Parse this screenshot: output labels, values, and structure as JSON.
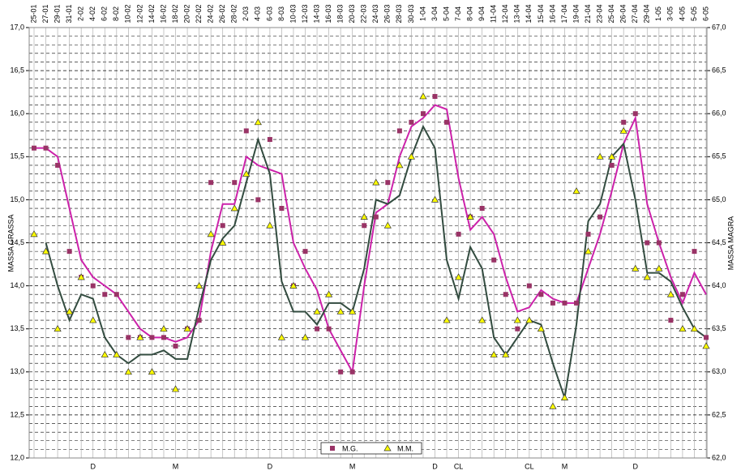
{
  "chart_data": {
    "type": "line",
    "y_label": "MASSA GRASSA",
    "y2_label": "MASSA MAGRA",
    "categories": [
      "25-01",
      "27-01",
      "29-01",
      "31-01",
      "2-02",
      "4-02",
      "6-02",
      "8-02",
      "10-02",
      "12-02",
      "14-02",
      "16-02",
      "18-02",
      "20-02",
      "22-02",
      "24-02",
      "26-02",
      "28-02",
      "2-03",
      "4-03",
      "6-03",
      "8-03",
      "10-03",
      "12-03",
      "14-03",
      "16-03",
      "18-03",
      "20-03",
      "22-03",
      "24-03",
      "26-03",
      "28-03",
      "30-03",
      "1-04",
      "3-04",
      "5-04",
      "7-04",
      "8-04",
      "9-04",
      "11-04",
      "12-04",
      "13-04",
      "14-04",
      "15-04",
      "16-04",
      "17-04",
      "19-04",
      "21-04",
      "23-04",
      "25-04",
      "26-04",
      "27-04",
      "29-04",
      "1-05",
      "3-05",
      "4-05",
      "5-05",
      "6-05"
    ],
    "period_labels": [
      null,
      null,
      null,
      null,
      null,
      "D",
      null,
      null,
      null,
      null,
      null,
      null,
      "M",
      null,
      null,
      null,
      null,
      null,
      null,
      null,
      "D",
      null,
      null,
      null,
      null,
      null,
      null,
      "M",
      null,
      null,
      null,
      null,
      null,
      null,
      "D",
      null,
      "CL",
      null,
      null,
      null,
      null,
      null,
      "CL",
      null,
      null,
      "M",
      null,
      null,
      null,
      null,
      null,
      "D",
      null,
      null,
      null,
      null,
      null,
      null
    ],
    "series": [
      {
        "name": "M.G.",
        "color": "#993366",
        "marker": "square",
        "axis": "y",
        "values": [
          15.6,
          15.6,
          15.4,
          14.4,
          14.1,
          14.0,
          13.9,
          13.9,
          13.4,
          13.4,
          13.4,
          13.4,
          13.3,
          13.5,
          13.6,
          15.2,
          14.7,
          15.2,
          15.8,
          15.0,
          15.7,
          14.9,
          14.0,
          14.4,
          13.5,
          13.5,
          13.0,
          13.0,
          14.7,
          14.8,
          15.2,
          15.8,
          15.9,
          16.0,
          16.2,
          15.9,
          14.6,
          14.8,
          14.9,
          14.3,
          13.9,
          13.5,
          14.0,
          13.9,
          13.8,
          13.8,
          13.8,
          14.6,
          14.8,
          15.4,
          15.9,
          16.0,
          14.5,
          14.5,
          13.6,
          13.9,
          14.4,
          13.4
        ]
      },
      {
        "name": "M.M.",
        "color": "#ffff00",
        "marker": "triangle",
        "axis": "y2",
        "values": [
          64.6,
          64.4,
          63.5,
          63.7,
          64.1,
          63.6,
          63.2,
          63.2,
          63.0,
          63.4,
          63.0,
          63.5,
          62.8,
          63.5,
          64.0,
          64.6,
          64.5,
          64.9,
          65.3,
          65.9,
          64.7,
          63.4,
          64.0,
          63.4,
          63.7,
          63.9,
          63.7,
          63.7,
          64.8,
          65.2,
          64.7,
          65.4,
          65.5,
          66.2,
          65.0,
          63.6,
          64.1,
          64.8,
          63.6,
          63.2,
          63.2,
          63.6,
          63.6,
          63.5,
          62.6,
          62.7,
          65.1,
          64.4,
          65.5,
          65.5,
          65.8,
          64.2,
          64.1,
          64.2,
          63.9,
          63.5,
          63.5,
          63.3
        ]
      },
      {
        "color": "#cc22aa",
        "marker": "line",
        "axis": "y",
        "values": [
          15.6,
          15.6,
          15.5,
          14.9,
          14.3,
          14.1,
          14.0,
          13.9,
          13.7,
          13.5,
          13.4,
          13.4,
          13.35,
          13.4,
          13.6,
          14.4,
          14.95,
          14.95,
          15.5,
          15.4,
          15.35,
          15.3,
          14.5,
          14.2,
          13.95,
          13.5,
          13.25,
          13.0,
          14.0,
          14.85,
          14.95,
          15.5,
          15.85,
          15.95,
          16.1,
          16.05,
          15.25,
          14.65,
          14.8,
          14.6,
          14.1,
          13.7,
          13.75,
          13.95,
          13.85,
          13.8,
          13.8,
          14.2,
          14.6,
          15.1,
          15.65,
          15.95,
          14.95,
          14.5,
          14.1,
          13.8,
          14.15,
          13.9
        ]
      },
      {
        "color": "#334c40",
        "marker": "line",
        "axis": "y2",
        "values": [
          null,
          64.5,
          64.0,
          63.6,
          63.9,
          63.85,
          63.4,
          63.2,
          63.1,
          63.2,
          63.2,
          63.25,
          63.15,
          63.15,
          63.75,
          64.3,
          64.55,
          64.7,
          65.2,
          65.7,
          65.3,
          64.05,
          63.7,
          63.7,
          63.55,
          63.8,
          63.8,
          63.7,
          64.2,
          65.0,
          64.95,
          65.05,
          65.5,
          65.85,
          65.6,
          64.3,
          63.85,
          64.45,
          64.2,
          63.4,
          63.2,
          63.4,
          63.6,
          63.55,
          63.1,
          62.7,
          63.55,
          64.75,
          64.95,
          65.5,
          65.65,
          65.0,
          64.15,
          64.15,
          64.05,
          63.75,
          63.5,
          63.4
        ]
      }
    ],
    "ylim": [
      12,
      17
    ],
    "yticks": [
      {
        "value": 12,
        "label": "12,0"
      },
      {
        "value": 12.5,
        "label": "12,5"
      },
      {
        "value": 13,
        "label": "13,0"
      },
      {
        "value": 13.5,
        "label": "13,5"
      },
      {
        "value": 14,
        "label": "14,0"
      },
      {
        "value": 14.5,
        "label": "14,5"
      },
      {
        "value": 15,
        "label": "15,0"
      },
      {
        "value": 15.5,
        "label": "15,5"
      },
      {
        "value": 16,
        "label": "16,0"
      },
      {
        "value": 16.5,
        "label": "16,5"
      },
      {
        "value": 17,
        "label": "17,0"
      }
    ],
    "y2lim": [
      62,
      67
    ],
    "y2ticks": [
      {
        "value": 62,
        "label": "62,0"
      },
      {
        "value": 62.5,
        "label": "62,5"
      },
      {
        "value": 63,
        "label": "63,0"
      },
      {
        "value": 63.5,
        "label": "63,5"
      },
      {
        "value": 64,
        "label": "64,0"
      },
      {
        "value": 64.5,
        "label": "64,5"
      },
      {
        "value": 65,
        "label": "65,0"
      },
      {
        "value": 65.5,
        "label": "65,5"
      },
      {
        "value": 66,
        "label": "66,0"
      },
      {
        "value": 66.5,
        "label": "66,5"
      },
      {
        "value": 67,
        "label": "67,0"
      }
    ],
    "grid": true,
    "legend": "bottom"
  }
}
